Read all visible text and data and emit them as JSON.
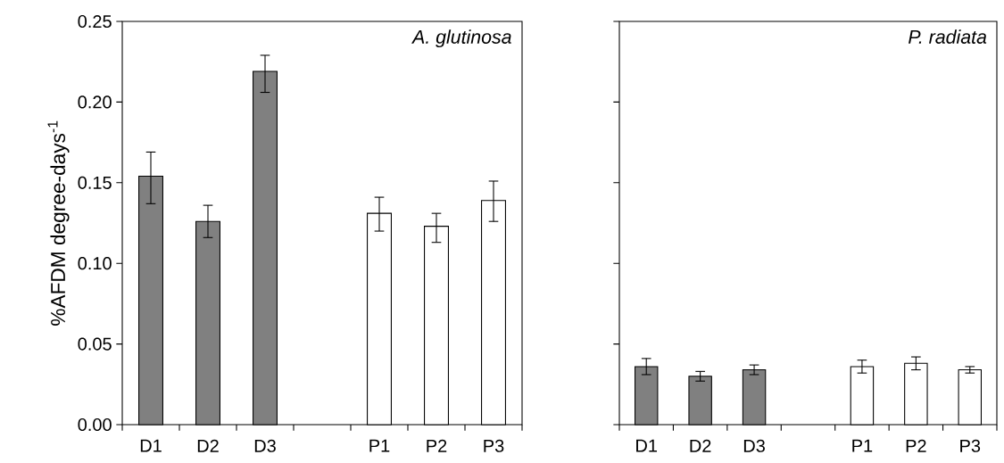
{
  "chart_data": [
    {
      "type": "bar",
      "categories": [
        "D1",
        "D2",
        "D3",
        null,
        "P1",
        "P2",
        "P3"
      ],
      "values": [
        0.154,
        0.126,
        0.219,
        null,
        0.131,
        0.123,
        0.139
      ],
      "colors": [
        "#808080",
        "#808080",
        "#808080",
        null,
        "#ffffff",
        "#ffffff",
        "#ffffff"
      ],
      "errors": [
        [
          0.137,
          0.169
        ],
        [
          0.116,
          0.136
        ],
        [
          0.206,
          0.229
        ],
        null,
        [
          0.12,
          0.141
        ],
        [
          0.113,
          0.131
        ],
        [
          0.126,
          0.151
        ]
      ],
      "ylabel": "%AFDM degree-days$^{-1}$",
      "annotations": [
        "A. glutinosa"
      ],
      "ylim": [
        0,
        0.25
      ],
      "yticks": [
        {
          "value": 0,
          "label": "0.00"
        },
        {
          "value": 0.05,
          "label": "0.05"
        },
        {
          "value": 0.1,
          "label": "0.10"
        },
        {
          "value": 0.15,
          "label": "0.15"
        },
        {
          "value": 0.2,
          "label": "0.20"
        },
        {
          "value": 0.25,
          "label": "0.25"
        }
      ]
    },
    {
      "type": "bar",
      "categories": [
        "D1",
        "D2",
        "D3",
        null,
        "P1",
        "P2",
        "P3"
      ],
      "values": [
        0.036,
        0.03,
        0.034,
        null,
        0.036,
        0.038,
        0.034
      ],
      "colors": [
        "#808080",
        "#808080",
        "#808080",
        null,
        "#ffffff",
        "#ffffff",
        "#ffffff"
      ],
      "errors": [
        0.005,
        0.003,
        0.003,
        null,
        0.004,
        0.004,
        0.002
      ],
      "annotations": [
        "P. radiata"
      ],
      "ylim": [
        0,
        0.25
      ],
      "tick_labels": "x",
      "yticks": [
        {
          "value": 0,
          "label": null
        },
        {
          "value": 0.05,
          "label": null
        },
        {
          "value": 0.1,
          "label": null
        },
        {
          "value": 0.15,
          "label": null
        },
        {
          "value": 0.2,
          "label": null
        },
        {
          "value": 0.25,
          "label": null
        }
      ]
    }
  ]
}
